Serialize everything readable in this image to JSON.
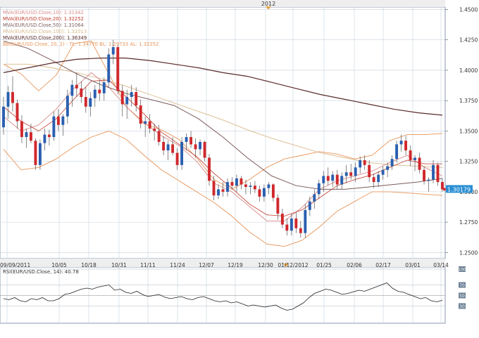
{
  "chart_data": [
    {
      "type": "candlestick",
      "top_label": "2012",
      "legend": [
        {
          "text": "MVA(EUR/USD.Close,10): 1.31342",
          "color": "#d98b8b"
        },
        {
          "text": "MVA(EUR/USD.Close,20): 1.32252",
          "color": "#c0392b"
        },
        {
          "text": "MVA(EUR/USD.Close,50): 1.31064",
          "color": "#7d5c5c"
        },
        {
          "text": "MVA(EUR/USD.Close,100): 1.32013",
          "color": "#d9b98b"
        },
        {
          "text": "MVA(EUR/USD.Close,200): 1.36349",
          "color": "#5a2a2a"
        },
        {
          "text": "BB(EUR/USD.Close, 20, 2) - TL: 1.34770  BL: 1.29733  AL: 1.32252",
          "color": "#e8955a"
        }
      ],
      "y_ticks": [
        "1.4500",
        "1.4250",
        "1.4000",
        "1.3750",
        "1.3500",
        "1.3250",
        "1.3000",
        "1.2750",
        "1.2500"
      ],
      "ylim": [
        1.245,
        1.452
      ],
      "x_ticks": [
        "09/09/2011",
        "10/05",
        "10/18",
        "10/31",
        "11/11",
        "11/24",
        "12/07",
        "12/19",
        "12/30",
        "01/12/2012",
        "01/25",
        "02/06",
        "02/17",
        "03/01",
        "03/14"
      ],
      "last_price": "1.30179",
      "up_color": "#2a5fb0",
      "down_color": "#d0282c",
      "candles": [
        [
          1.353,
          1.378,
          1.347,
          1.37
        ],
        [
          1.37,
          1.387,
          1.36,
          1.382
        ],
        [
          1.382,
          1.395,
          1.366,
          1.373
        ],
        [
          1.373,
          1.376,
          1.352,
          1.358
        ],
        [
          1.358,
          1.363,
          1.34,
          1.345
        ],
        [
          1.345,
          1.352,
          1.336,
          1.349
        ],
        [
          1.349,
          1.356,
          1.34,
          1.342
        ],
        [
          1.342,
          1.344,
          1.318,
          1.322
        ],
        [
          1.322,
          1.343,
          1.318,
          1.34
        ],
        [
          1.34,
          1.352,
          1.334,
          1.347
        ],
        [
          1.347,
          1.351,
          1.338,
          1.345
        ],
        [
          1.345,
          1.366,
          1.342,
          1.362
        ],
        [
          1.362,
          1.368,
          1.35,
          1.355
        ],
        [
          1.355,
          1.364,
          1.346,
          1.362
        ],
        [
          1.362,
          1.384,
          1.356,
          1.379
        ],
        [
          1.379,
          1.392,
          1.37,
          1.388
        ],
        [
          1.388,
          1.398,
          1.378,
          1.385
        ],
        [
          1.385,
          1.391,
          1.373,
          1.378
        ],
        [
          1.378,
          1.386,
          1.365,
          1.37
        ],
        [
          1.37,
          1.382,
          1.362,
          1.377
        ],
        [
          1.377,
          1.388,
          1.37,
          1.384
        ],
        [
          1.384,
          1.392,
          1.375,
          1.381
        ],
        [
          1.381,
          1.394,
          1.375,
          1.39
        ],
        [
          1.39,
          1.418,
          1.386,
          1.413
        ],
        [
          1.413,
          1.425,
          1.405,
          1.419
        ],
        [
          1.419,
          1.421,
          1.38,
          1.383
        ],
        [
          1.383,
          1.388,
          1.362,
          1.372
        ],
        [
          1.372,
          1.384,
          1.36,
          1.378
        ],
        [
          1.378,
          1.388,
          1.37,
          1.382
        ],
        [
          1.382,
          1.386,
          1.366,
          1.371
        ],
        [
          1.371,
          1.376,
          1.352,
          1.356
        ],
        [
          1.356,
          1.362,
          1.345,
          1.358
        ],
        [
          1.358,
          1.364,
          1.348,
          1.352
        ],
        [
          1.352,
          1.356,
          1.342,
          1.35
        ],
        [
          1.35,
          1.355,
          1.338,
          1.341
        ],
        [
          1.341,
          1.346,
          1.33,
          1.334
        ],
        [
          1.334,
          1.342,
          1.326,
          1.339
        ],
        [
          1.339,
          1.345,
          1.33,
          1.332
        ],
        [
          1.332,
          1.336,
          1.318,
          1.322
        ],
        [
          1.322,
          1.345,
          1.318,
          1.341
        ],
        [
          1.341,
          1.348,
          1.334,
          1.345
        ],
        [
          1.345,
          1.35,
          1.336,
          1.339
        ],
        [
          1.339,
          1.344,
          1.328,
          1.335
        ],
        [
          1.335,
          1.343,
          1.33,
          1.341
        ],
        [
          1.341,
          1.342,
          1.325,
          1.328
        ],
        [
          1.328,
          1.331,
          1.305,
          1.309
        ],
        [
          1.309,
          1.313,
          1.293,
          1.297
        ],
        [
          1.297,
          1.306,
          1.294,
          1.302
        ],
        [
          1.302,
          1.308,
          1.296,
          1.3
        ],
        [
          1.3,
          1.311,
          1.296,
          1.308
        ],
        [
          1.308,
          1.312,
          1.302,
          1.305
        ],
        [
          1.305,
          1.314,
          1.3,
          1.311
        ],
        [
          1.311,
          1.313,
          1.302,
          1.306
        ],
        [
          1.306,
          1.31,
          1.298,
          1.304
        ],
        [
          1.304,
          1.308,
          1.298,
          1.305
        ],
        [
          1.305,
          1.309,
          1.299,
          1.302
        ],
        [
          1.302,
          1.305,
          1.292,
          1.296
        ],
        [
          1.296,
          1.306,
          1.292,
          1.303
        ],
        [
          1.303,
          1.308,
          1.298,
          1.306
        ],
        [
          1.306,
          1.307,
          1.292,
          1.295
        ],
        [
          1.295,
          1.298,
          1.277,
          1.282
        ],
        [
          1.282,
          1.286,
          1.27,
          1.273
        ],
        [
          1.273,
          1.278,
          1.264,
          1.268
        ],
        [
          1.268,
          1.282,
          1.264,
          1.278
        ],
        [
          1.278,
          1.283,
          1.266,
          1.27
        ],
        [
          1.27,
          1.276,
          1.262,
          1.266
        ],
        [
          1.266,
          1.29,
          1.262,
          1.285
        ],
        [
          1.285,
          1.296,
          1.28,
          1.292
        ],
        [
          1.292,
          1.302,
          1.286,
          1.298
        ],
        [
          1.298,
          1.31,
          1.294,
          1.307
        ],
        [
          1.307,
          1.317,
          1.3,
          1.313
        ],
        [
          1.313,
          1.32,
          1.305,
          1.309
        ],
        [
          1.309,
          1.317,
          1.304,
          1.314
        ],
        [
          1.314,
          1.318,
          1.302,
          1.306
        ],
        [
          1.306,
          1.316,
          1.302,
          1.313
        ],
        [
          1.313,
          1.322,
          1.307,
          1.316
        ],
        [
          1.316,
          1.323,
          1.31,
          1.313
        ],
        [
          1.313,
          1.324,
          1.308,
          1.32
        ],
        [
          1.32,
          1.329,
          1.315,
          1.326
        ],
        [
          1.326,
          1.33,
          1.318,
          1.322
        ],
        [
          1.322,
          1.326,
          1.308,
          1.312
        ],
        [
          1.312,
          1.315,
          1.303,
          1.308
        ],
        [
          1.308,
          1.317,
          1.304,
          1.314
        ],
        [
          1.314,
          1.321,
          1.31,
          1.318
        ],
        [
          1.318,
          1.324,
          1.312,
          1.321
        ],
        [
          1.321,
          1.33,
          1.318,
          1.327
        ],
        [
          1.327,
          1.342,
          1.324,
          1.339
        ],
        [
          1.339,
          1.347,
          1.333,
          1.342
        ],
        [
          1.342,
          1.346,
          1.33,
          1.334
        ],
        [
          1.334,
          1.338,
          1.321,
          1.326
        ],
        [
          1.326,
          1.33,
          1.317,
          1.328
        ],
        [
          1.328,
          1.332,
          1.315,
          1.318
        ],
        [
          1.318,
          1.321,
          1.306,
          1.309
        ],
        [
          1.309,
          1.312,
          1.3,
          1.31
        ],
        [
          1.31,
          1.326,
          1.307,
          1.322
        ],
        [
          1.322,
          1.324,
          1.305,
          1.308
        ],
        [
          1.308,
          1.311,
          1.3,
          1.302
        ]
      ],
      "mva200": [
        1.398,
        1.402,
        1.406,
        1.409,
        1.41,
        1.41,
        1.408,
        1.405,
        1.402,
        1.398,
        1.395,
        1.39,
        1.385,
        1.38,
        1.376,
        1.372,
        1.368,
        1.365,
        1.363
      ],
      "mva100": [
        1.405,
        1.405,
        1.402,
        1.398,
        1.393,
        1.387,
        1.38,
        1.373,
        1.366,
        1.359,
        1.351,
        1.344,
        1.338,
        1.332,
        1.328,
        1.324,
        1.322,
        1.321,
        1.32
      ],
      "mva50": [
        1.424,
        1.418,
        1.408,
        1.397,
        1.388,
        1.381,
        1.376,
        1.371,
        1.36,
        1.345,
        1.328,
        1.313,
        1.305,
        1.302,
        1.302,
        1.304,
        1.306,
        1.308,
        1.311
      ],
      "bb_top": [
        1.405,
        1.397,
        1.383,
        1.396,
        1.422,
        1.424,
        1.397,
        1.37,
        1.356,
        1.351,
        1.343,
        1.328,
        1.31,
        1.302,
        1.31,
        1.32,
        1.327,
        1.33,
        1.333,
        1.331,
        1.327,
        1.33,
        1.342,
        1.347,
        1.347,
        1.348
      ],
      "bb_bottom": [
        1.335,
        1.318,
        1.32,
        1.327,
        1.337,
        1.345,
        1.35,
        1.343,
        1.33,
        1.318,
        1.309,
        1.3,
        1.291,
        1.28,
        1.267,
        1.257,
        1.255,
        1.26,
        1.271,
        1.284,
        1.292,
        1.3,
        1.3,
        1.299,
        1.298,
        1.297
      ],
      "mva20": [
        1.37,
        1.358,
        1.35,
        1.36,
        1.376,
        1.391,
        1.392,
        1.378,
        1.364,
        1.349,
        1.339,
        1.329,
        1.315,
        1.303,
        1.29,
        1.281,
        1.28,
        1.285,
        1.295,
        1.305,
        1.31,
        1.314,
        1.32,
        1.326,
        1.323,
        1.323
      ],
      "mva10": [
        1.362,
        1.35,
        1.355,
        1.368,
        1.385,
        1.398,
        1.386,
        1.37,
        1.357,
        1.346,
        1.338,
        1.325,
        1.307,
        1.3,
        1.288,
        1.276,
        1.276,
        1.287,
        1.302,
        1.309,
        1.313,
        1.317,
        1.324,
        1.33,
        1.32,
        1.313
      ]
    },
    {
      "type": "line",
      "legend": "RSI(EUR/USD.Close, 14): 40.78",
      "y_ticks": [
        "100",
        "70",
        "50",
        "30"
      ],
      "ylim": [
        0,
        100
      ],
      "values": [
        44,
        42,
        46,
        40,
        38,
        44,
        42,
        46,
        40,
        40,
        44,
        52,
        54,
        58,
        62,
        64,
        62,
        66,
        68,
        70,
        60,
        62,
        56,
        54,
        58,
        52,
        48,
        50,
        52,
        47,
        44,
        46,
        48,
        44,
        42,
        46,
        48,
        44,
        40,
        38,
        40,
        36,
        38,
        34,
        30,
        32,
        30,
        28,
        30,
        32,
        26,
        22,
        24,
        30,
        36,
        46,
        54,
        58,
        62,
        60,
        56,
        52,
        54,
        57,
        60,
        58,
        62,
        66,
        70,
        74,
        64,
        58,
        56,
        52,
        48,
        44,
        46,
        40,
        38,
        41
      ]
    }
  ]
}
